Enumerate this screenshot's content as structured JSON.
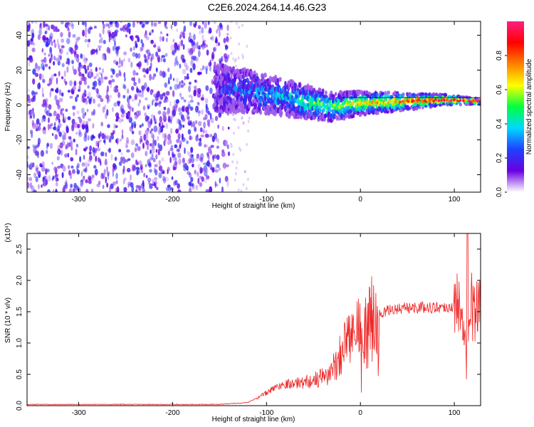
{
  "figure_title": "C2E6.2024.264.14.46.G23",
  "chart_data": [
    {
      "type": "heatmap",
      "title": "",
      "xlabel": "Height of straight line (km)",
      "ylabel": "Frequency (Hz)",
      "xlim": [
        -355,
        128
      ],
      "ylim": [
        -50,
        48
      ],
      "xticks": [
        -300,
        -200,
        -100,
        0,
        100
      ],
      "yticks": [
        -40,
        -20,
        0,
        20,
        40
      ],
      "colorbar": {
        "label": "Normalized spectral amplitude",
        "range": [
          0,
          1
        ],
        "ticks": [
          "0.0",
          "0.2",
          "0.4",
          "0.6",
          "0.8"
        ],
        "colors": [
          "#ffffff",
          "#6a00e0",
          "#2040ff",
          "#00d8ff",
          "#00ff40",
          "#ffff00",
          "#ff8000",
          "#ff0000",
          "#ff2080"
        ]
      },
      "regions": [
        {
          "name": "noise",
          "x_range": [
            -355,
            -140
          ],
          "freq_range": [
            -50,
            48
          ],
          "amplitude": 0.1
        },
        {
          "name": "signal",
          "x_range": [
            -155,
            128
          ],
          "freq_center": [
            [
              -155,
              10
            ],
            [
              -120,
              8
            ],
            [
              -90,
              5
            ],
            [
              -60,
              2
            ],
            [
              -30,
              -1
            ],
            [
              0,
              1
            ],
            [
              50,
              2
            ],
            [
              90,
              3
            ],
            [
              128,
              2
            ]
          ],
          "amplitude_peak": 1.0
        }
      ]
    },
    {
      "type": "line",
      "title": "",
      "xlabel": "Height of straight line (km)",
      "ylabel": "SNR (10 * v/v)",
      "y_multiplier": "(x10⁴)",
      "xlim": [
        -355,
        128
      ],
      "ylim": [
        0,
        2.75
      ],
      "xticks": [
        -300,
        -200,
        -100,
        0,
        100
      ],
      "yticks": [
        "0.0",
        "0.5",
        "1.0",
        "1.5",
        "2.0",
        "2.5"
      ],
      "color": "#ee2222",
      "series": [
        {
          "x": [
            -355,
            -150,
            -120,
            -100,
            -90,
            -80,
            -70,
            -60,
            -50,
            -40,
            -30,
            -20,
            -15,
            -10,
            0,
            10,
            20,
            30,
            40,
            60,
            80,
            100,
            110,
            113,
            116,
            120,
            128
          ],
          "y": [
            0.02,
            0.02,
            0.05,
            0.2,
            0.3,
            0.35,
            0.35,
            0.38,
            0.4,
            0.45,
            0.55,
            0.9,
            1.1,
            1.05,
            1.15,
            1.3,
            1.45,
            1.52,
            1.55,
            1.57,
            1.57,
            1.58,
            1.6,
            0.6,
            1.7,
            1.55,
            1.53
          ]
        }
      ]
    }
  ]
}
